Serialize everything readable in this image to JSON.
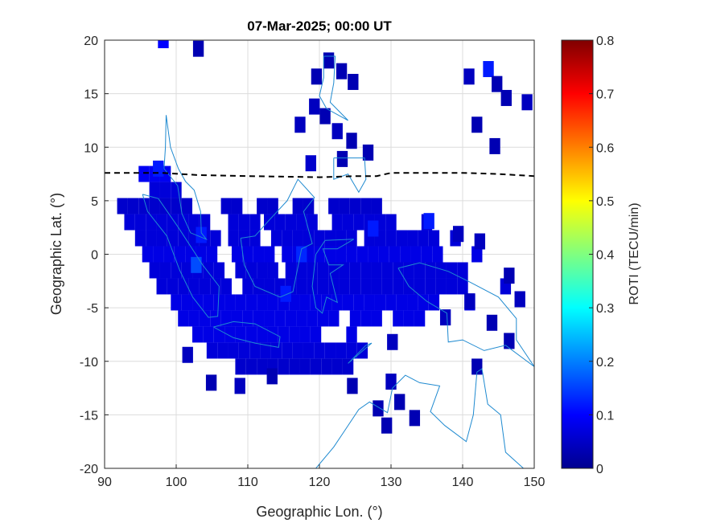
{
  "chart_data": {
    "type": "heatmap",
    "title": "07-Mar-2025; 00:00 UT",
    "xlabel": "Geographic Lon. (°)",
    "ylabel": "Geographic Lat. (°)",
    "xlim": [
      90,
      150
    ],
    "ylim": [
      -20,
      20
    ],
    "xticks": [
      90,
      100,
      110,
      120,
      130,
      140,
      150
    ],
    "yticks": [
      -20,
      -15,
      -10,
      -5,
      0,
      5,
      10,
      15,
      20
    ],
    "grid": true,
    "colorbar": {
      "label": "ROTI (TECU/min)",
      "range": [
        0,
        0.8
      ],
      "ticks": [
        0,
        0.1,
        0.2,
        0.3,
        0.4,
        0.5,
        0.6,
        0.7,
        0.8
      ],
      "colormap": "jet",
      "placement": "right"
    },
    "cell_size_deg": [
      1.5,
      1.5
    ],
    "grid_rows": [
      {
        "lat": 7.5,
        "roti": 0.09,
        "lon_ranges": [
          [
            95.5,
            99.5
          ]
        ]
      },
      {
        "lat": 6,
        "roti": 0.07,
        "lon_ranges": [
          [
            97,
            101
          ]
        ]
      },
      {
        "lat": 4.5,
        "roti": 0.06,
        "lon_ranges": [
          [
            92.5,
            102.5
          ],
          [
            107,
            109
          ],
          [
            112,
            114
          ],
          [
            117,
            119
          ],
          [
            122,
            128
          ]
        ]
      },
      {
        "lat": 3,
        "roti": 0.07,
        "lon_ranges": [
          [
            93.5,
            104
          ],
          [
            108,
            111
          ],
          [
            113,
            120
          ],
          [
            122.5,
            131
          ],
          [
            135,
            135
          ]
        ]
      },
      {
        "lat": 1.5,
        "roti": 0.07,
        "lon_ranges": [
          [
            95,
            106
          ],
          [
            108,
            112
          ],
          [
            114,
            125
          ],
          [
            127,
            136
          ],
          [
            139,
            139
          ]
        ]
      },
      {
        "lat": 0,
        "roti": 0.08,
        "lon_ranges": [
          [
            96,
            106
          ],
          [
            108.5,
            114
          ],
          [
            115.5,
            126
          ],
          [
            127.5,
            137
          ],
          [
            142,
            142
          ]
        ]
      },
      {
        "lat": -1.5,
        "roti": 0.07,
        "lon_ranges": [
          [
            97,
            107
          ],
          [
            109,
            114
          ],
          [
            116,
            127
          ],
          [
            128,
            140
          ]
        ]
      },
      {
        "lat": -3,
        "roti": 0.07,
        "lon_ranges": [
          [
            98,
            108
          ],
          [
            110,
            116
          ],
          [
            117.5,
            140
          ],
          [
            146,
            146
          ]
        ]
      },
      {
        "lat": -4.5,
        "roti": 0.08,
        "lon_ranges": [
          [
            100,
            118
          ],
          [
            119.5,
            136
          ],
          [
            141,
            141
          ]
        ]
      },
      {
        "lat": -6,
        "roti": 0.08,
        "lon_ranges": [
          [
            101,
            116
          ],
          [
            117.5,
            123
          ],
          [
            125,
            128
          ],
          [
            131,
            134
          ]
        ]
      },
      {
        "lat": -7.5,
        "roti": 0.08,
        "lon_ranges": [
          [
            103,
            120
          ],
          [
            124.5,
            124.5
          ]
        ]
      },
      {
        "lat": -9,
        "roti": 0.07,
        "lon_ranges": [
          [
            105,
            126
          ]
        ]
      },
      {
        "lat": -10.5,
        "roti": 0.06,
        "lon_ranges": [
          [
            109,
            124
          ]
        ]
      }
    ],
    "cells": [
      [
        98.2,
        20,
        0.1
      ],
      [
        103.1,
        19.2,
        0.04
      ],
      [
        121.3,
        18.1,
        0.04
      ],
      [
        119.6,
        16.6,
        0.04
      ],
      [
        123.1,
        17.1,
        0.04
      ],
      [
        124.7,
        16.1,
        0.04
      ],
      [
        119.3,
        13.8,
        0.05
      ],
      [
        120.8,
        12.9,
        0.04
      ],
      [
        117.3,
        12.1,
        0.05
      ],
      [
        122.5,
        11.5,
        0.05
      ],
      [
        124.5,
        10.6,
        0.04
      ],
      [
        126.8,
        9.5,
        0.04
      ],
      [
        118.8,
        8.5,
        0.06
      ],
      [
        123.2,
        8.9,
        0.04
      ],
      [
        140.9,
        16.6,
        0.05
      ],
      [
        143.6,
        17.3,
        0.12
      ],
      [
        144.8,
        15.9,
        0.04
      ],
      [
        146.1,
        14.6,
        0.04
      ],
      [
        149,
        14.2,
        0.05
      ],
      [
        142,
        12.1,
        0.04
      ],
      [
        144.5,
        10.1,
        0.04
      ],
      [
        101.6,
        -9.4,
        0.05
      ],
      [
        104.9,
        -12,
        0.04
      ],
      [
        108.9,
        -12.3,
        0.05
      ],
      [
        113.4,
        -11.4,
        0.04
      ],
      [
        124.6,
        -12.3,
        0.04
      ],
      [
        130,
        -11.9,
        0.05
      ],
      [
        128.2,
        -14.4,
        0.04
      ],
      [
        131.2,
        -13.8,
        0.04
      ],
      [
        133.3,
        -15.3,
        0.04
      ],
      [
        129.4,
        -16,
        0.04
      ],
      [
        130.2,
        -8.2,
        0.05
      ],
      [
        142,
        -10.5,
        0.04
      ],
      [
        146.5,
        -8.1,
        0.04
      ],
      [
        144.1,
        -6.4,
        0.04
      ],
      [
        148,
        -4.2,
        0.05
      ],
      [
        146.5,
        -2,
        0.04
      ],
      [
        141,
        -4.4,
        0.05
      ],
      [
        137.6,
        -5.9,
        0.05
      ],
      [
        142.4,
        1.2,
        0.05
      ],
      [
        139.4,
        1.9,
        0.05
      ],
      [
        135.3,
        3.1,
        0.12
      ],
      [
        102.8,
        -1,
        0.16
      ],
      [
        117.5,
        0,
        0.13
      ],
      [
        127.5,
        2.4,
        0.12
      ],
      [
        97.5,
        8,
        0.12
      ],
      [
        115.3,
        -3.7,
        0.12
      ],
      [
        103.5,
        1.8,
        0.12
      ]
    ],
    "magnetic_equator": {
      "lon": [
        90,
        98,
        103,
        110,
        120,
        125,
        128,
        130,
        140,
        145,
        150
      ],
      "lat": [
        7.6,
        7.6,
        7.4,
        7.3,
        7.2,
        7.3,
        7.3,
        7.6,
        7.6,
        7.5,
        7.3
      ]
    }
  }
}
